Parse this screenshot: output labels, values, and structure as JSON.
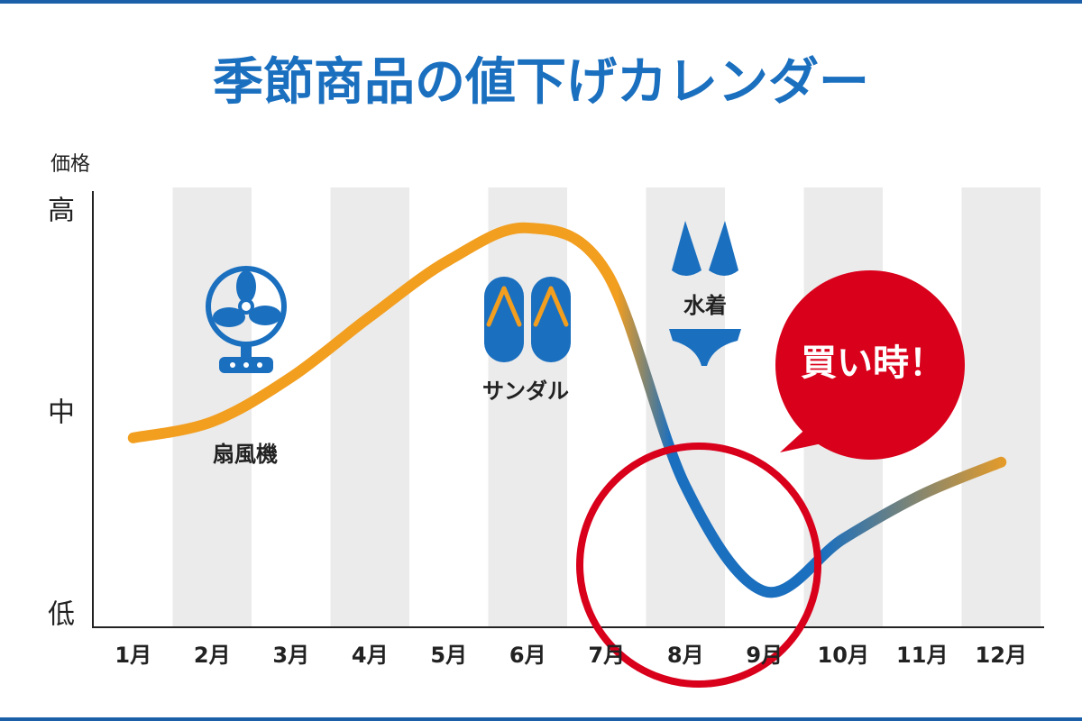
{
  "chart_data": {
    "type": "line",
    "title": "季節商品の値下げカレンダー",
    "y_label": "価格",
    "categories": [
      "1月",
      "2月",
      "3月",
      "4月",
      "5月",
      "6月",
      "7月",
      "8月",
      "9月",
      "10月",
      "11月",
      "12月"
    ],
    "values": [
      44,
      48,
      59,
      74,
      88,
      96,
      85,
      32,
      6,
      19,
      30,
      38
    ],
    "color": "#f29e1f",
    "highlight_color": "#1a6fbf",
    "ylim": [
      0,
      100
    ],
    "yticks": [
      {
        "value": 0,
        "label": "低"
      },
      {
        "value": 50,
        "label": "中"
      },
      {
        "value": 100,
        "label": "高"
      }
    ],
    "stripes": true,
    "annotations": {
      "fan": "扇風機",
      "sandals": "サンダル",
      "swimsuit": "水着",
      "callout": "買い時！"
    }
  }
}
